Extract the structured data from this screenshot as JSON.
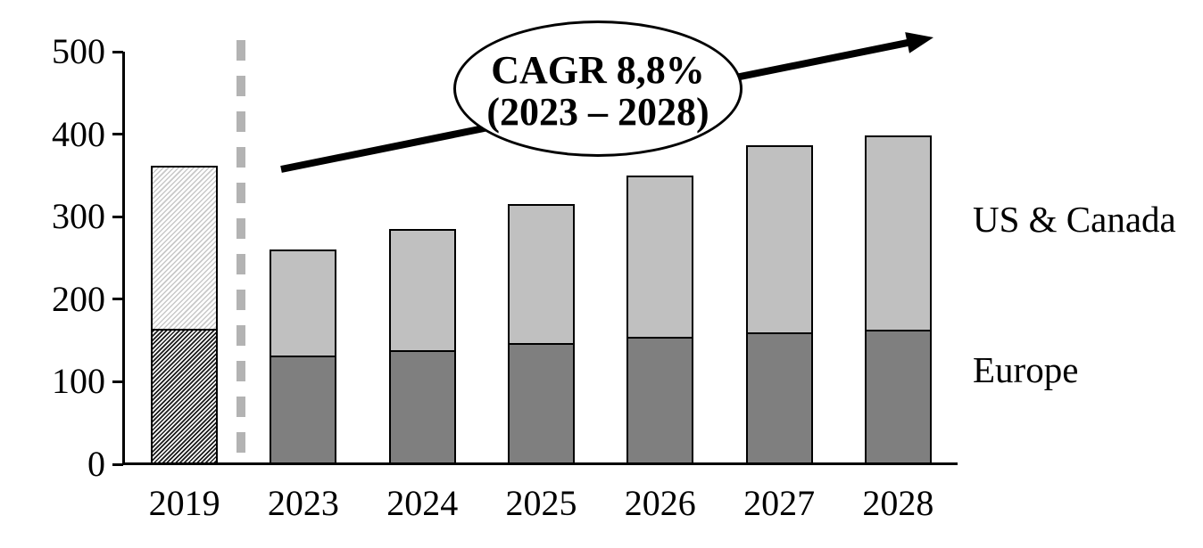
{
  "chart_data": {
    "type": "bar",
    "stacked": true,
    "categories": [
      "2019",
      "2023",
      "2024",
      "2025",
      "2026",
      "2027",
      "2028"
    ],
    "series": [
      {
        "name": "Europe",
        "color": "#7f7f7f",
        "values": [
          162,
          130,
          136,
          145,
          152,
          158,
          161
        ]
      },
      {
        "name": "US & Canada",
        "color": "#c0c0c0",
        "values": [
          200,
          130,
          149,
          170,
          198,
          229,
          237
        ]
      }
    ],
    "totals": [
      362,
      260,
      285,
      315,
      350,
      387,
      398
    ],
    "ylim": [
      0,
      500
    ],
    "yticks": [
      0,
      100,
      200,
      300,
      400,
      500
    ],
    "grid": false,
    "legend_position": "right-of-plot",
    "hatched_categories": [
      "2019"
    ],
    "separator": {
      "between": [
        "2019",
        "2023"
      ],
      "style": "dashed",
      "color": "#b3b3b3"
    },
    "annotation": {
      "line1": "CAGR 8,8%",
      "line2": "(2023 – 2028)"
    },
    "series_labels": {
      "us_canada": "US & Canada",
      "europe": "Europe"
    },
    "axis_color": "#000000",
    "background": "#ffffff"
  }
}
